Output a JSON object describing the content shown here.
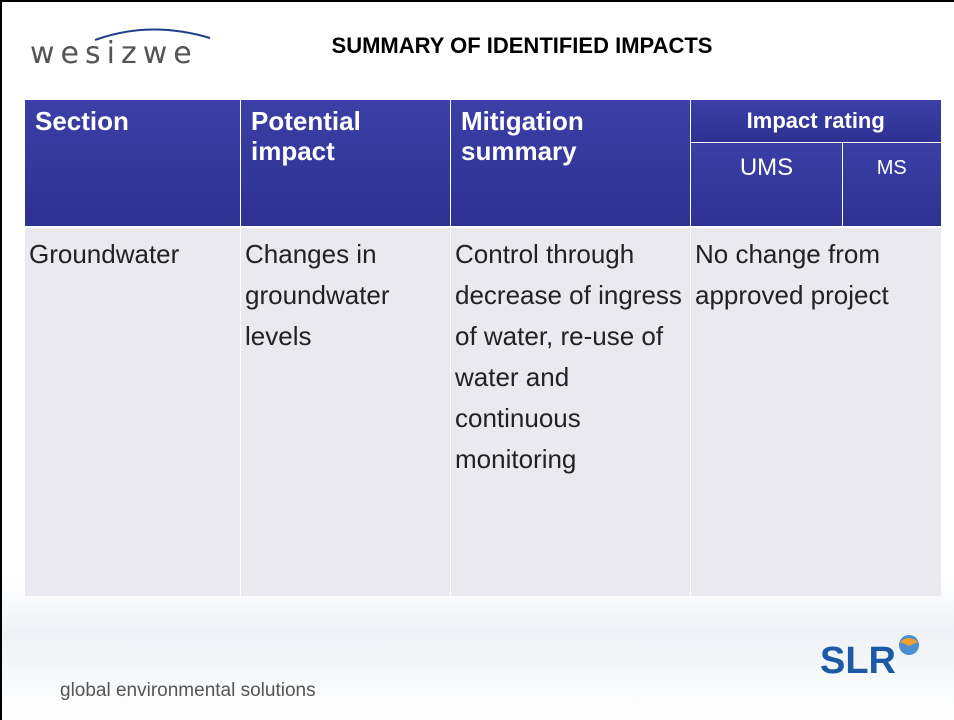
{
  "header": {
    "logo": "wesizwe",
    "title": "SUMMARY OF IDENTIFIED IMPACTS"
  },
  "table": {
    "columns": [
      "Section",
      "Potential impact",
      "Mitigation summary",
      "Impact rating"
    ],
    "subcolumns": [
      "UMS",
      "MS"
    ],
    "rows": [
      [
        "Groundwater",
        "Changes in groundwater levels",
        "Control through decrease of ingress of water, re-use of water and continuous monitoring",
        "No change from approved project"
      ]
    ]
  },
  "footer": {
    "tagline": "global environmental solutions",
    "brand": "SLR"
  }
}
